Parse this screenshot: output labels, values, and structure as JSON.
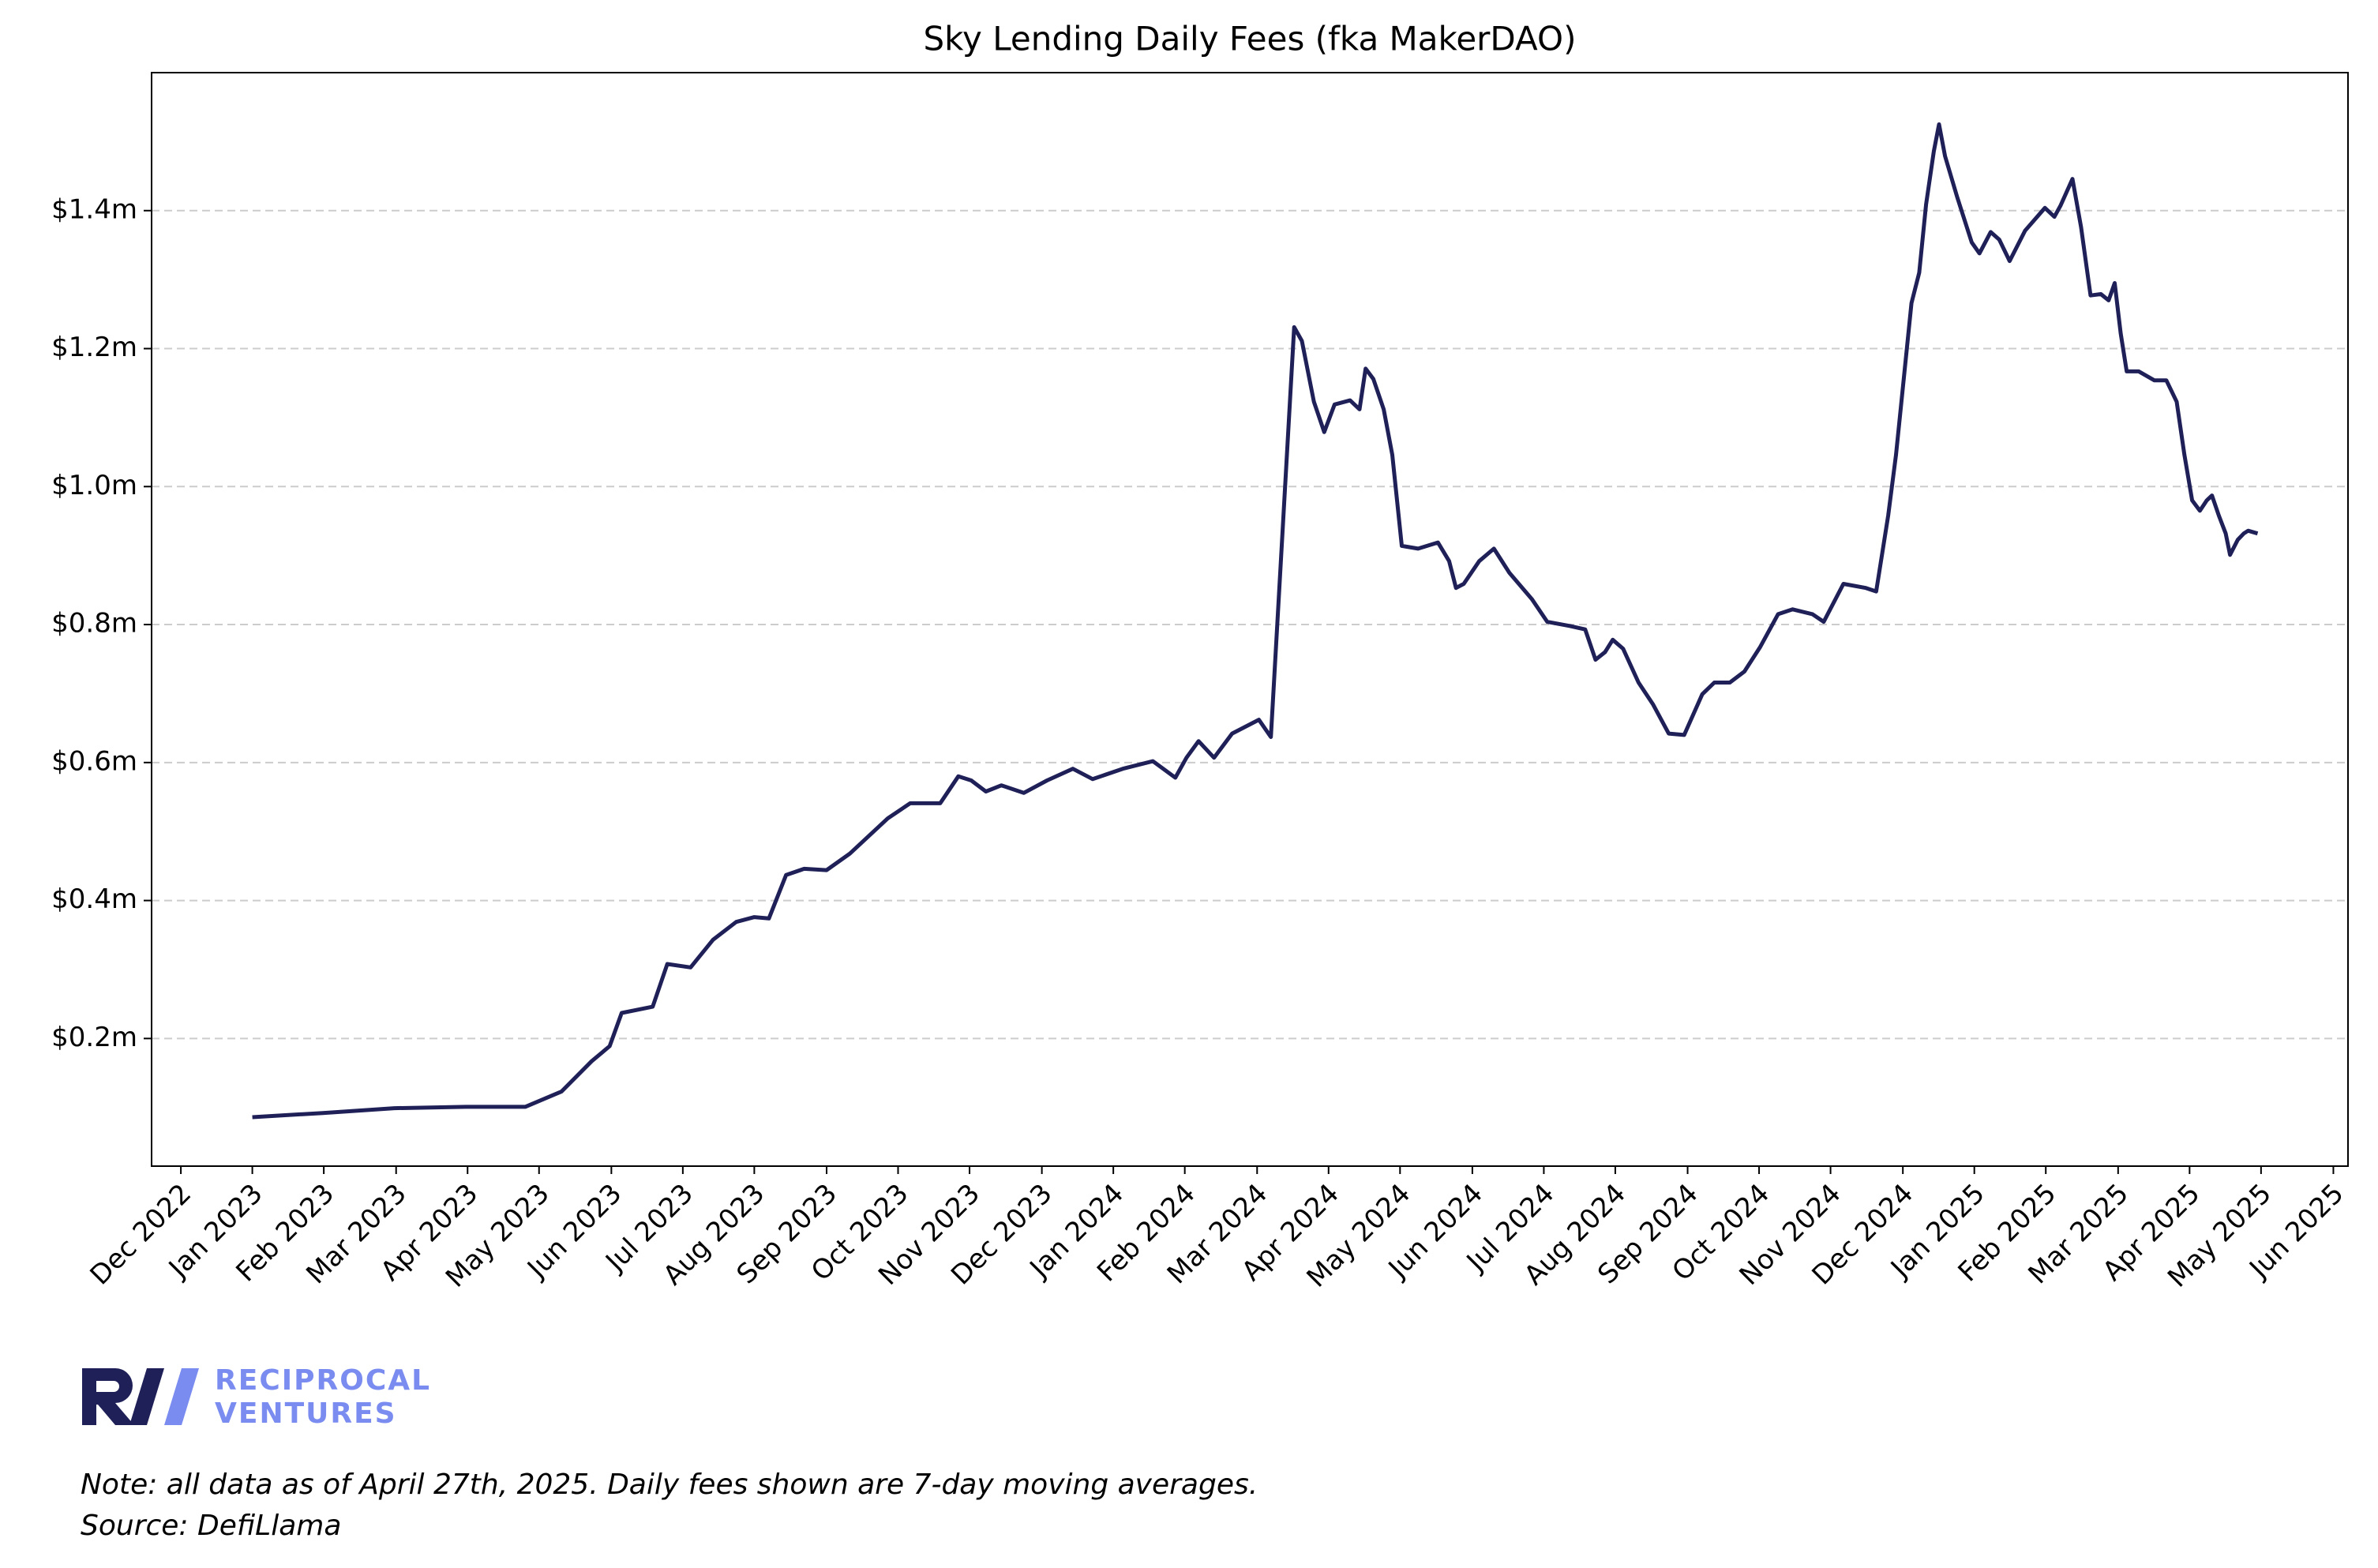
{
  "chart_data": {
    "type": "line",
    "title": "Sky Lending Daily Fees (fka MakerDAO)",
    "color": "#1f2057",
    "grid": true,
    "x": [
      2023.0,
      2023.082,
      2023.165,
      2023.248,
      2023.317,
      2023.359,
      2023.394,
      2023.415,
      2023.429,
      2023.465,
      2023.482,
      2023.509,
      2023.535,
      2023.562,
      2023.583,
      2023.6,
      2023.62,
      2023.641,
      2023.667,
      2023.694,
      2023.738,
      2023.764,
      2023.799,
      2023.82,
      2023.835,
      2023.852,
      2023.87,
      2023.896,
      2023.923,
      2023.953,
      2023.976,
      2024.011,
      2024.046,
      2024.072,
      2024.085,
      2024.099,
      2024.117,
      2024.138,
      2024.169,
      2024.183,
      2024.21,
      2024.219,
      2024.233,
      2024.245,
      2024.257,
      2024.275,
      2024.286,
      2024.293,
      2024.302,
      2024.314,
      2024.324,
      2024.335,
      2024.354,
      2024.377,
      2024.39,
      2024.398,
      2024.407,
      2024.425,
      2024.442,
      2024.46,
      2024.486,
      2024.504,
      2024.53,
      2024.548,
      2024.56,
      2024.571,
      2024.58,
      2024.592,
      2024.61,
      2024.627,
      2024.645,
      2024.663,
      2024.684,
      2024.698,
      2024.716,
      2024.733,
      2024.751,
      2024.772,
      2024.789,
      2024.812,
      2024.825,
      2024.848,
      2024.874,
      2024.886,
      2024.9,
      2024.909,
      2024.927,
      2024.936,
      2024.944,
      2024.953,
      2024.959,
      2024.966,
      2024.98,
      2024.997,
      2025.006,
      2025.019,
      2025.029,
      2025.041,
      2025.059,
      2025.082,
      2025.093,
      2025.1,
      2025.114,
      2025.124,
      2025.135,
      2025.147,
      2025.156,
      2025.163,
      2025.17,
      2025.177,
      2025.191,
      2025.209,
      2025.223,
      2025.235,
      2025.244,
      2025.253,
      2025.262,
      2025.27,
      2025.276,
      2025.284,
      2025.292,
      2025.297,
      2025.306,
      2025.313,
      2025.318,
      2025.329
    ],
    "values": [
      0.086,
      0.092,
      0.099,
      0.101,
      0.101,
      0.123,
      0.167,
      0.189,
      0.237,
      0.246,
      0.308,
      0.303,
      0.343,
      0.369,
      0.376,
      0.374,
      0.437,
      0.446,
      0.444,
      0.468,
      0.519,
      0.541,
      0.541,
      0.58,
      0.574,
      0.558,
      0.567,
      0.556,
      0.574,
      0.591,
      0.576,
      0.591,
      0.602,
      0.578,
      0.607,
      0.631,
      0.607,
      0.642,
      0.662,
      0.637,
      1.231,
      1.211,
      1.123,
      1.079,
      1.119,
      1.125,
      1.112,
      1.171,
      1.156,
      1.112,
      1.046,
      0.914,
      0.91,
      0.919,
      0.892,
      0.853,
      0.859,
      0.892,
      0.91,
      0.875,
      0.837,
      0.804,
      0.798,
      0.793,
      0.749,
      0.76,
      0.778,
      0.765,
      0.716,
      0.684,
      0.642,
      0.64,
      0.699,
      0.716,
      0.716,
      0.732,
      0.767,
      0.815,
      0.822,
      0.815,
      0.804,
      0.859,
      0.853,
      0.848,
      0.958,
      1.046,
      1.266,
      1.31,
      1.409,
      1.486,
      1.525,
      1.479,
      1.42,
      1.354,
      1.338,
      1.369,
      1.358,
      1.327,
      1.371,
      1.404,
      1.391,
      1.407,
      1.446,
      1.376,
      1.277,
      1.279,
      1.27,
      1.295,
      1.222,
      1.167,
      1.167,
      1.154,
      1.154,
      1.123,
      1.046,
      0.98,
      0.965,
      0.98,
      0.987,
      0.958,
      0.932,
      0.901,
      0.923,
      0.932,
      0.936,
      0.932
    ],
    "xlim": [
      2022.883,
      2025.434
    ],
    "xticks": [
      {
        "value": 2022.917,
        "label": "Dec 2022"
      },
      {
        "value": 2023.0,
        "label": "Jan 2023"
      },
      {
        "value": 2023.083,
        "label": "Feb 2023"
      },
      {
        "value": 2023.167,
        "label": "Mar 2023"
      },
      {
        "value": 2023.25,
        "label": "Apr 2023"
      },
      {
        "value": 2023.333,
        "label": "May 2023"
      },
      {
        "value": 2023.417,
        "label": "Jun 2023"
      },
      {
        "value": 2023.5,
        "label": "Jul 2023"
      },
      {
        "value": 2023.583,
        "label": "Aug 2023"
      },
      {
        "value": 2023.667,
        "label": "Sep 2023"
      },
      {
        "value": 2023.75,
        "label": "Oct 2023"
      },
      {
        "value": 2023.833,
        "label": "Nov 2023"
      },
      {
        "value": 2023.917,
        "label": "Dec 2023"
      },
      {
        "value": 2024.0,
        "label": "Jan 2024"
      },
      {
        "value": 2024.083,
        "label": "Feb 2024"
      },
      {
        "value": 2024.167,
        "label": "Mar 2024"
      },
      {
        "value": 2024.25,
        "label": "Apr 2024"
      },
      {
        "value": 2024.333,
        "label": "May 2024"
      },
      {
        "value": 2024.417,
        "label": "Jun 2024"
      },
      {
        "value": 2024.5,
        "label": "Jul 2024"
      },
      {
        "value": 2024.583,
        "label": "Aug 2024"
      },
      {
        "value": 2024.667,
        "label": "Sep 2024"
      },
      {
        "value": 2024.75,
        "label": "Oct 2024"
      },
      {
        "value": 2024.833,
        "label": "Nov 2024"
      },
      {
        "value": 2024.917,
        "label": "Dec 2024"
      },
      {
        "value": 2025.0,
        "label": "Jan 2025"
      },
      {
        "value": 2025.083,
        "label": "Feb 2025"
      },
      {
        "value": 2025.167,
        "label": "Mar 2025"
      },
      {
        "value": 2025.25,
        "label": "Apr 2025"
      },
      {
        "value": 2025.333,
        "label": "May 2025"
      },
      {
        "value": 2025.417,
        "label": "Jun 2025"
      }
    ],
    "ylim": [
      0.015,
      1.6
    ],
    "yticks": [
      {
        "value": 0.2,
        "label": "$0.2m"
      },
      {
        "value": 0.4,
        "label": "$0.4m"
      },
      {
        "value": 0.6,
        "label": "$0.6m"
      },
      {
        "value": 0.8,
        "label": "$0.8m"
      },
      {
        "value": 1.0,
        "label": "$1.0m"
      },
      {
        "value": 1.2,
        "label": "$1.2m"
      },
      {
        "value": 1.4,
        "label": "$1.4m"
      }
    ],
    "logo": [
      "RECIPROCAL",
      "VENTURES"
    ],
    "notes": [
      "Note: all data as of April 27th, 2025. Daily fees shown are 7-day moving averages.",
      "Source: DefiLlama"
    ]
  }
}
